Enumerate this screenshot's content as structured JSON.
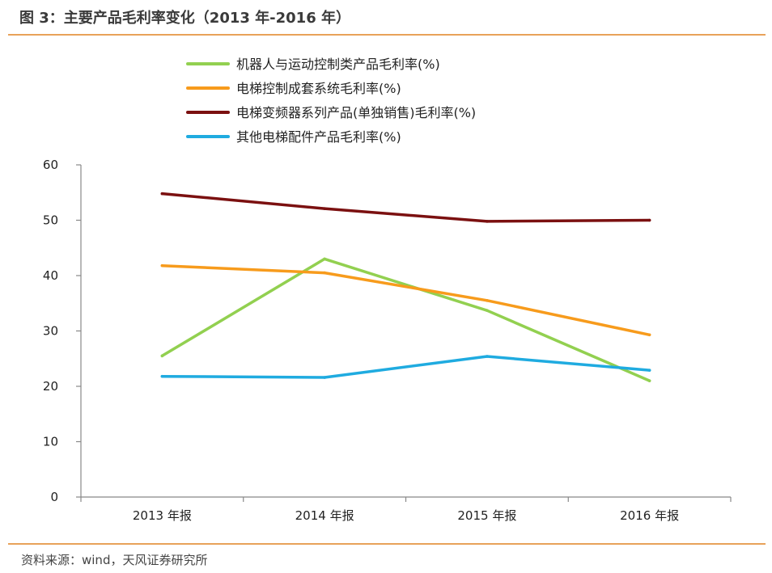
{
  "header": {
    "title": "图 3：主要产品毛利率变化（2013 年-2016 年）"
  },
  "footer": {
    "source": "资料来源：wind，天风证券研究所"
  },
  "chart_data": {
    "type": "line",
    "categories": [
      "2013 年报",
      "2014 年报",
      "2015 年报",
      "2016 年报"
    ],
    "ylim": [
      0,
      60
    ],
    "yticks": [
      0,
      10,
      20,
      30,
      40,
      50,
      60
    ],
    "grid": false,
    "legend_position": "top",
    "series": [
      {
        "name": "机器人与运动控制类产品毛利率(%)",
        "color": "#92d050",
        "values": [
          25.5,
          43.0,
          33.7,
          21.0
        ]
      },
      {
        "name": "电梯控制成套系统毛利率(%)",
        "color": "#f79b1c",
        "values": [
          41.8,
          40.5,
          35.5,
          29.3
        ]
      },
      {
        "name": "电梯变频器系列产品(单独销售)毛利率(%)",
        "color": "#7b1010",
        "values": [
          54.8,
          52.1,
          49.8,
          50.0
        ]
      },
      {
        "name": "其他电梯配件产品毛利率(%)",
        "color": "#1fabe0",
        "values": [
          21.8,
          21.6,
          25.4,
          22.9
        ]
      }
    ]
  }
}
